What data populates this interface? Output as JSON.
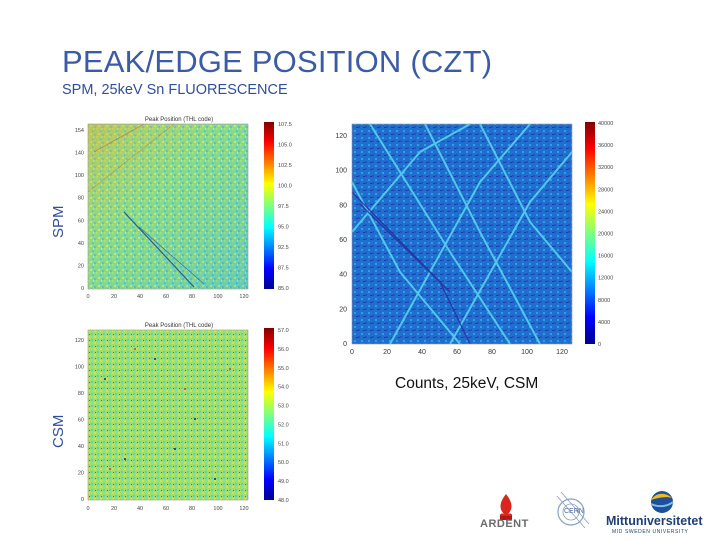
{
  "slide": {
    "title": "PEAK/EDGE POSITION (CZT)",
    "subtitle": "SPM, 25keV Sn FLUORESCENCE",
    "label_spm": "SPM",
    "label_csm": "CSM",
    "caption_counts": "Counts, 25keV, CSM"
  },
  "plots": {
    "spm": {
      "title": "Peak Position (THL code)",
      "y_ticks": [
        "154",
        "140",
        "100",
        "80",
        "60",
        "40",
        "20",
        "0"
      ],
      "x_ticks": [
        "0",
        "20",
        "40",
        "60",
        "80",
        "100",
        "120"
      ],
      "colorbar_ticks": [
        "107.5",
        "105.0",
        "102.5",
        "100.0",
        "97.5",
        "95.0",
        "92.5",
        "87.5",
        "85.0"
      ]
    },
    "counts": {
      "y_ticks": [
        "120",
        "100",
        "80",
        "60",
        "40",
        "20",
        "0"
      ],
      "x_ticks": [
        "0",
        "20",
        "40",
        "60",
        "80",
        "100",
        "120"
      ],
      "colorbar_ticks": [
        "40000",
        "36000",
        "32000",
        "28000",
        "24000",
        "20000",
        "16000",
        "12000",
        "8000",
        "4000",
        "0"
      ]
    },
    "csm": {
      "title": "Peak Position (THL code)",
      "y_ticks": [
        "120",
        "100",
        "80",
        "60",
        "40",
        "20",
        "0"
      ],
      "x_ticks": [
        "0",
        "20",
        "40",
        "60",
        "80",
        "100",
        "120"
      ],
      "colorbar_ticks": [
        "57.0",
        "56.0",
        "55.0",
        "54.0",
        "53.0",
        "52.0",
        "51.0",
        "50.0",
        "49.0",
        "48.0"
      ]
    }
  },
  "logos": {
    "ardent": "ARDENT",
    "cern": "CERN",
    "mittuniversitetet": "Mittuniversitetet",
    "mittuniversitetet_sub": "MID SWEDEN UNIVERSITY"
  }
}
